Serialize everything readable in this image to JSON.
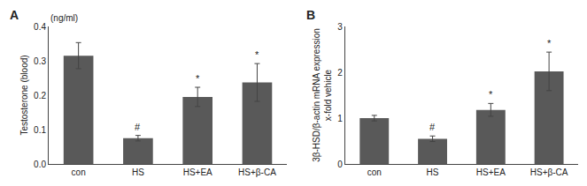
{
  "chart_data": [
    {
      "type": "bar",
      "title": "A",
      "subtitle": "(ng/ml)",
      "categories": [
        "con",
        "HS",
        "HS+EA",
        "HS+β-CA"
      ],
      "values": [
        0.315,
        0.075,
        0.195,
        0.237
      ],
      "errors": [
        0.038,
        0.008,
        0.028,
        0.055
      ],
      "y_label": "Testosterone (blood)",
      "ylim": [
        0,
        0.4
      ],
      "yticks": [
        {
          "value": 0.0,
          "label": "0.0"
        },
        0.1,
        0.2,
        0.3,
        0.4
      ],
      "annotations": [
        {
          "category": "HS",
          "text": "#"
        },
        {
          "category": "HS+EA",
          "text": "*"
        },
        {
          "category": "HS+β-CA",
          "text": "*"
        }
      ],
      "color": "#595959",
      "grid": false
    },
    {
      "type": "bar",
      "title": "B",
      "categories": [
        "con",
        "HS",
        "HS+EA",
        "HS+β-CA"
      ],
      "values": [
        1.0,
        0.55,
        1.18,
        2.02
      ],
      "errors": [
        0.06,
        0.06,
        0.14,
        0.42
      ],
      "y_label": "3β-HSD/β-actin mRNA expression\nx-fold vehicle",
      "ylim": [
        0,
        3
      ],
      "yticks": [
        0,
        1,
        2,
        3
      ],
      "annotations": [
        {
          "category": "HS",
          "text": "#"
        },
        {
          "category": "HS+EA",
          "text": "*"
        },
        {
          "category": "HS+β-CA",
          "text": "*"
        }
      ],
      "color": "#595959",
      "grid": false
    }
  ]
}
